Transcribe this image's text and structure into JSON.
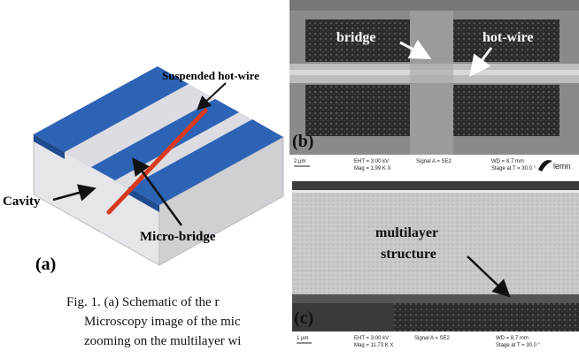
{
  "panel_a": {
    "labels": {
      "hot_wire": "Suspended hot-wire",
      "cavity": "Cavity",
      "micro_bridge": "Micro-bridge"
    },
    "panel_label": "(a)"
  },
  "panel_b": {
    "labels": {
      "bridge": "bridge",
      "hot_wire": "hot-wire"
    },
    "panel_label": "(b)",
    "info_bar": {
      "scale": "2 µm",
      "eht": "EHT = 3.00 kV",
      "mag": "Mag = 1.99 K X",
      "signal": "Signal A = SE2",
      "wd": "WD = 8.7 mm",
      "stage": "Stage at T = 30.0 °",
      "logo": "lemn"
    }
  },
  "panel_c": {
    "labels": {
      "line1": "multilayer",
      "line2": "structure"
    },
    "panel_label": "(c)",
    "info_bar": {
      "scale": "1 µm",
      "eht": "EHT = 3.00 kV",
      "mag": "Mag = 11.73 K X",
      "signal": "Signal A = SE2",
      "wd": "WD = 8.7 mm",
      "stage": "Stage at T = 30.0 °"
    }
  },
  "caption": {
    "lines": [
      "Fig. 1. (a)  Schematic  of  the  r",
      "Microscopy image of the mic",
      "zooming on the multilayer wi"
    ]
  }
}
